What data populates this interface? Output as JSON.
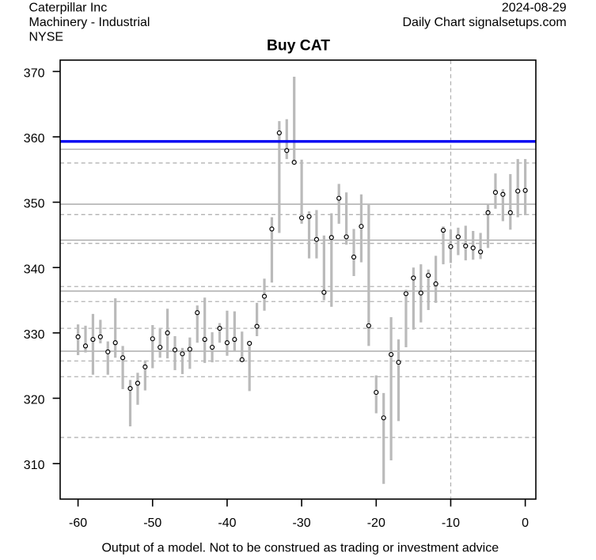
{
  "header": {
    "company": "Caterpillar Inc",
    "industry": "Machinery - Industrial",
    "exchange": "NYSE",
    "date": "2024-08-29",
    "source_line": "Daily Chart signalsetups.com"
  },
  "title": "Buy CAT",
  "footer": {
    "disclaimer": "Output of a model. Not to be construed as trading or investment advice"
  },
  "colors": {
    "background": "#ffffff",
    "text": "#000000",
    "bar": "#bababa",
    "close_dot_fill": "#ffffff",
    "close_dot_stroke": "#000000",
    "signal_line": "#0000f2",
    "solid_gridline": "#9c9c9c",
    "dashed_gridline": "#b3b3b3",
    "axis": "#000000"
  },
  "chart_data": {
    "type": "hlc_bar",
    "title": "Buy CAT",
    "xlabel": "",
    "ylabel": "",
    "x_ticks": [
      -60,
      -50,
      -40,
      -30,
      -20,
      -10,
      0
    ],
    "y_ticks": [
      310,
      320,
      330,
      340,
      350,
      360,
      370
    ],
    "xlim": [
      -62.4,
      1.42
    ],
    "ylim": [
      304.57,
      371.74
    ],
    "grid": false,
    "legend": "none",
    "signal_line_value": 359.3,
    "solid_gridlines": [
      358.1,
      349.7,
      344.2,
      336.4,
      327.2
    ],
    "dashed_gridlines": [
      356.0,
      348.1,
      343.7,
      337.1,
      334.8,
      330.7,
      325.7,
      323.3,
      314.0
    ],
    "vertical_dashed_x": -10,
    "series": [
      {
        "x": -60,
        "high": 331.3,
        "low": 326.6,
        "close": 329.4
      },
      {
        "x": -59,
        "high": 331.1,
        "low": 327.0,
        "close": 328.0
      },
      {
        "x": -58,
        "high": 332.9,
        "low": 323.6,
        "close": 329.0
      },
      {
        "x": -57,
        "high": 332.0,
        "low": 328.4,
        "close": 329.4
      },
      {
        "x": -56,
        "high": 328.7,
        "low": 323.6,
        "close": 327.1
      },
      {
        "x": -55,
        "high": 335.3,
        "low": 326.2,
        "close": 328.5
      },
      {
        "x": -54,
        "high": 328.0,
        "low": 321.4,
        "close": 326.2
      },
      {
        "x": -53,
        "high": 322.8,
        "low": 315.7,
        "close": 321.5
      },
      {
        "x": -52,
        "high": 323.9,
        "low": 319.0,
        "close": 322.3
      },
      {
        "x": -51,
        "high": 325.8,
        "low": 321.2,
        "close": 324.8
      },
      {
        "x": -50,
        "high": 331.2,
        "low": 324.6,
        "close": 329.1
      },
      {
        "x": -49,
        "high": 330.6,
        "low": 326.2,
        "close": 327.8
      },
      {
        "x": -48,
        "high": 333.7,
        "low": 326.1,
        "close": 330.0
      },
      {
        "x": -47,
        "high": 329.5,
        "low": 324.3,
        "close": 327.4
      },
      {
        "x": -46,
        "high": 327.7,
        "low": 323.7,
        "close": 326.8
      },
      {
        "x": -45,
        "high": 329.3,
        "low": 324.5,
        "close": 327.5
      },
      {
        "x": -44,
        "high": 334.2,
        "low": 328.5,
        "close": 333.1
      },
      {
        "x": -43,
        "high": 335.4,
        "low": 325.4,
        "close": 329.0
      },
      {
        "x": -42,
        "high": 330.1,
        "low": 325.5,
        "close": 327.8
      },
      {
        "x": -41,
        "high": 331.5,
        "low": 328.5,
        "close": 330.7
      },
      {
        "x": -40,
        "high": 333.4,
        "low": 326.5,
        "close": 328.5
      },
      {
        "x": -39,
        "high": 333.3,
        "low": 327.2,
        "close": 329.0
      },
      {
        "x": -38,
        "high": 330.2,
        "low": 325.6,
        "close": 325.9
      },
      {
        "x": -37,
        "high": 328.5,
        "low": 321.1,
        "close": 328.4
      },
      {
        "x": -36,
        "high": 334.6,
        "low": 329.5,
        "close": 331.0
      },
      {
        "x": -35,
        "high": 338.3,
        "low": 333.4,
        "close": 335.6
      },
      {
        "x": -34,
        "high": 347.7,
        "low": 337.7,
        "close": 345.9
      },
      {
        "x": -33,
        "high": 362.4,
        "low": 345.3,
        "close": 360.6
      },
      {
        "x": -32,
        "high": 362.7,
        "low": 356.6,
        "close": 357.9
      },
      {
        "x": -31,
        "high": 369.2,
        "low": 356.3,
        "close": 356.1
      },
      {
        "x": -30,
        "high": 356.5,
        "low": 346.7,
        "close": 347.6
      },
      {
        "x": -29,
        "high": 348.6,
        "low": 341.4,
        "close": 347.8
      },
      {
        "x": -28,
        "high": 348.8,
        "low": 341.4,
        "close": 344.3
      },
      {
        "x": -27,
        "high": 344.9,
        "low": 335.0,
        "close": 336.2
      },
      {
        "x": -26,
        "high": 348.3,
        "low": 334.0,
        "close": 344.6
      },
      {
        "x": -25,
        "high": 352.8,
        "low": 346.7,
        "close": 350.6
      },
      {
        "x": -24,
        "high": 351.5,
        "low": 343.5,
        "close": 344.7
      },
      {
        "x": -23,
        "high": 345.9,
        "low": 338.7,
        "close": 341.6
      },
      {
        "x": -22,
        "high": 351.2,
        "low": 340.8,
        "close": 346.3
      },
      {
        "x": -21,
        "high": 349.8,
        "low": 328.0,
        "close": 331.1
      },
      {
        "x": -20,
        "high": 323.5,
        "low": 317.7,
        "close": 320.9
      },
      {
        "x": -19,
        "high": 320.8,
        "low": 306.9,
        "close": 317.0
      },
      {
        "x": -18,
        "high": 332.4,
        "low": 310.5,
        "close": 326.7
      },
      {
        "x": -17,
        "high": 329.0,
        "low": 316.5,
        "close": 325.5
      },
      {
        "x": -16,
        "high": 336.6,
        "low": 327.8,
        "close": 336.0
      },
      {
        "x": -15,
        "high": 340.0,
        "low": 330.5,
        "close": 338.4
      },
      {
        "x": -14,
        "high": 340.5,
        "low": 331.6,
        "close": 336.1
      },
      {
        "x": -13,
        "high": 339.7,
        "low": 333.5,
        "close": 338.8
      },
      {
        "x": -12,
        "high": 341.8,
        "low": 334.6,
        "close": 337.5
      },
      {
        "x": -11,
        "high": 346.3,
        "low": 340.5,
        "close": 345.7
      },
      {
        "x": -10,
        "high": 345.8,
        "low": 340.7,
        "close": 343.2
      },
      {
        "x": -9,
        "high": 346.1,
        "low": 341.9,
        "close": 344.7
      },
      {
        "x": -8,
        "high": 346.4,
        "low": 341.1,
        "close": 343.3
      },
      {
        "x": -7,
        "high": 345.6,
        "low": 341.2,
        "close": 343.0
      },
      {
        "x": -6,
        "high": 345.3,
        "low": 341.3,
        "close": 342.4
      },
      {
        "x": -5,
        "high": 349.7,
        "low": 343.0,
        "close": 348.4
      },
      {
        "x": -4,
        "high": 354.4,
        "low": 349.0,
        "close": 351.5
      },
      {
        "x": -3,
        "high": 352.0,
        "low": 347.1,
        "close": 351.2
      },
      {
        "x": -2,
        "high": 354.3,
        "low": 345.8,
        "close": 348.4
      },
      {
        "x": -1,
        "high": 356.6,
        "low": 347.7,
        "close": 351.7
      },
      {
        "x": 0,
        "high": 356.6,
        "low": 348.0,
        "close": 351.8
      }
    ]
  }
}
